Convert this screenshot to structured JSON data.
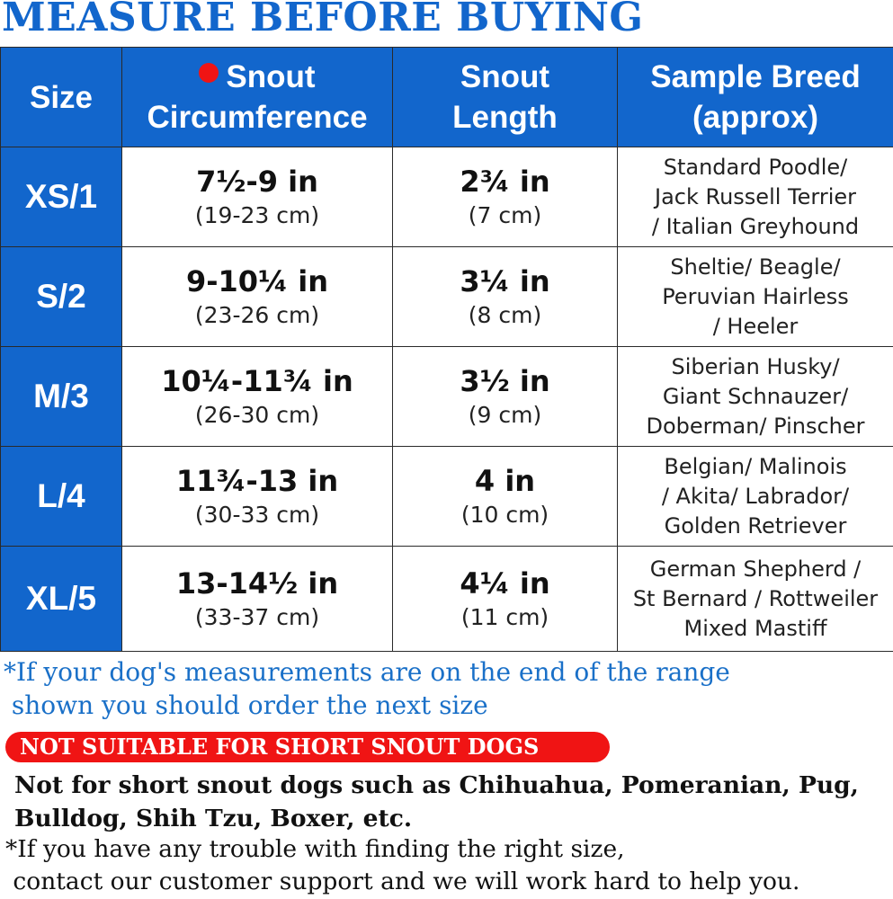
{
  "title": "MEASURE BEFORE BUYING",
  "colors": {
    "header_blue": "#1266cc",
    "accent_red": "#f01414",
    "note_blue": "#1a70c8"
  },
  "table": {
    "headers": {
      "size": "Size",
      "circumference": [
        "Snout",
        "Circumference"
      ],
      "length": [
        "Snout",
        "Length"
      ],
      "breed": [
        "Sample Breed",
        "(approx)"
      ]
    },
    "rows": [
      {
        "size": "XS/1",
        "circ_in": "7½-9 in",
        "circ_cm": "(19-23 cm)",
        "len_in": "2¾ in",
        "len_cm": "(7 cm)",
        "breed": [
          "Standard Poodle/",
          "Jack Russell Terrier",
          "/ Italian Greyhound"
        ]
      },
      {
        "size": "S/2",
        "circ_in": "9-10¼ in",
        "circ_cm": "(23-26 cm)",
        "len_in": "3¼ in",
        "len_cm": "(8 cm)",
        "breed": [
          "Sheltie/ Beagle/",
          "Peruvian Hairless",
          "/ Heeler"
        ]
      },
      {
        "size": "M/3",
        "circ_in": "10¼-11¾ in",
        "circ_cm": "(26-30 cm)",
        "len_in": "3½ in",
        "len_cm": "(9 cm)",
        "breed": [
          "Siberian Husky/",
          "Giant Schnauzer/",
          "Doberman/ Pinscher"
        ]
      },
      {
        "size": "L/4",
        "circ_in": "11¾-13 in",
        "circ_cm": "(30-33 cm)",
        "len_in": "4 in",
        "len_cm": "(10 cm)",
        "breed": [
          "Belgian/ Malinois",
          "/ Akita/ Labrador/",
          "Golden Retriever"
        ]
      },
      {
        "size": "XL/5",
        "circ_in": "13-14½ in",
        "circ_cm": "(33-37 cm)",
        "len_in": "4¼ in",
        "len_cm": "(11 cm)",
        "breed": [
          "German Shepherd /",
          "St Bernard / Rottweiler",
          "Mixed Mastiff"
        ]
      }
    ]
  },
  "range_note": [
    "*If your dog's measurements are on the end of the range",
    " shown you should order the next size"
  ],
  "banner": "NOT SUITABLE FOR SHORT SNOUT DOGS",
  "short_snout_warning": [
    "Not for short snout dogs such as Chihuahua, Pomeranian, Pug,",
    "Bulldog, Shih Tzu, Boxer, etc."
  ],
  "support_note": [
    "*If you have any trouble with finding the right size,",
    " contact our customer support and we will work hard to help you."
  ]
}
